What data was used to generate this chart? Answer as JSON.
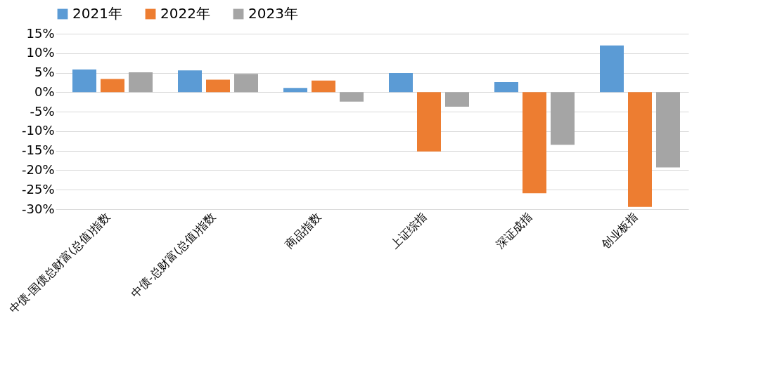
{
  "chart_data": {
    "type": "bar",
    "categories": [
      "中债-国债总财富(总值)指数",
      "中债-总财富(总值)指数",
      "商品指数",
      "上证综指",
      "深证成指",
      "创业板指"
    ],
    "series": [
      {
        "name": "2021年",
        "color": "#5b9bd5",
        "values": [
          5.8,
          5.6,
          1.1,
          4.9,
          2.6,
          12.0
        ]
      },
      {
        "name": "2022年",
        "color": "#ed7d31",
        "values": [
          3.4,
          3.2,
          3.0,
          -15.2,
          -25.9,
          -29.4
        ]
      },
      {
        "name": "2023年",
        "color": "#a5a5a5",
        "values": [
          5.1,
          4.7,
          -2.4,
          -3.7,
          -13.5,
          -19.3
        ]
      }
    ],
    "ylim": [
      -30,
      15
    ],
    "yticks": [
      {
        "value": 15,
        "label": "15%"
      },
      {
        "value": 10,
        "label": "10%"
      },
      {
        "value": 5,
        "label": "5%"
      },
      {
        "value": 0,
        "label": "0%"
      },
      {
        "value": -5,
        "label": "-5%"
      },
      {
        "value": -10,
        "label": "-10%"
      },
      {
        "value": -15,
        "label": "-15%"
      },
      {
        "value": -20,
        "label": "-20%"
      },
      {
        "value": -25,
        "label": "-25%"
      },
      {
        "value": -30,
        "label": "-30%"
      }
    ],
    "grid": "y",
    "legend": "top"
  }
}
